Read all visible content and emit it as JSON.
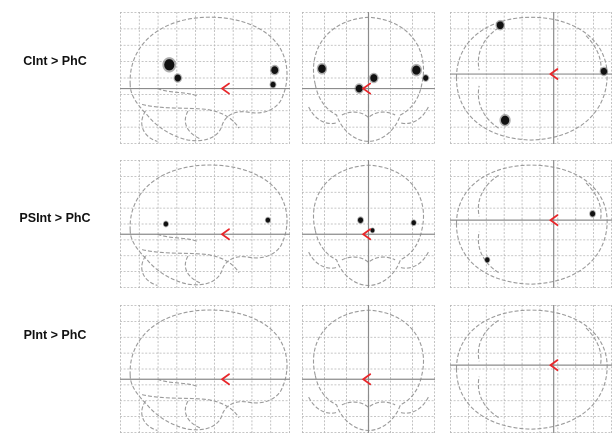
{
  "rows": [
    {
      "label": "CInt > PhC",
      "panels": [
        {
          "view": "sagittal",
          "blobs": [
            {
              "u": 0.29,
              "v": 0.4,
              "s": 1.6
            },
            {
              "u": 0.34,
              "v": 0.5,
              "s": 1.0
            },
            {
              "u": 0.91,
              "v": 0.44,
              "s": 1.1
            },
            {
              "u": 0.9,
              "v": 0.55,
              "s": 0.8
            }
          ]
        },
        {
          "view": "coronal",
          "blobs": [
            {
              "u": 0.15,
              "v": 0.43,
              "s": 1.2
            },
            {
              "u": 0.43,
              "v": 0.58,
              "s": 1.1
            },
            {
              "u": 0.54,
              "v": 0.5,
              "s": 1.1
            },
            {
              "u": 0.86,
              "v": 0.44,
              "s": 1.3
            },
            {
              "u": 0.93,
              "v": 0.5,
              "s": 0.8
            }
          ]
        },
        {
          "view": "axial",
          "blobs": [
            {
              "u": 0.31,
              "v": 0.1,
              "s": 1.1
            },
            {
              "u": 0.34,
              "v": 0.82,
              "s": 1.3
            },
            {
              "u": 0.95,
              "v": 0.45,
              "s": 1.0
            }
          ]
        }
      ]
    },
    {
      "label": "PSInt > PhC",
      "panels": [
        {
          "view": "sagittal",
          "blobs": [
            {
              "u": 0.27,
              "v": 0.5,
              "s": 0.7
            },
            {
              "u": 0.87,
              "v": 0.47,
              "s": 0.7
            }
          ]
        },
        {
          "view": "coronal",
          "blobs": [
            {
              "u": 0.44,
              "v": 0.47,
              "s": 0.8
            },
            {
              "u": 0.53,
              "v": 0.55,
              "s": 0.6
            },
            {
              "u": 0.84,
              "v": 0.49,
              "s": 0.7
            }
          ]
        },
        {
          "view": "axial",
          "blobs": [
            {
              "u": 0.88,
              "v": 0.42,
              "s": 0.8
            },
            {
              "u": 0.23,
              "v": 0.78,
              "s": 0.7
            }
          ]
        }
      ]
    },
    {
      "label": "PInt > PhC",
      "panels": [
        {
          "view": "sagittal",
          "blobs": []
        },
        {
          "view": "coronal",
          "blobs": []
        },
        {
          "view": "axial",
          "blobs": []
        }
      ]
    }
  ],
  "colors": {
    "outline": "#9a9a9a",
    "grid": "#b4b4b4",
    "crosshair": "#8c8c8c",
    "cursor": "#e8262a",
    "activation": "#111111"
  }
}
